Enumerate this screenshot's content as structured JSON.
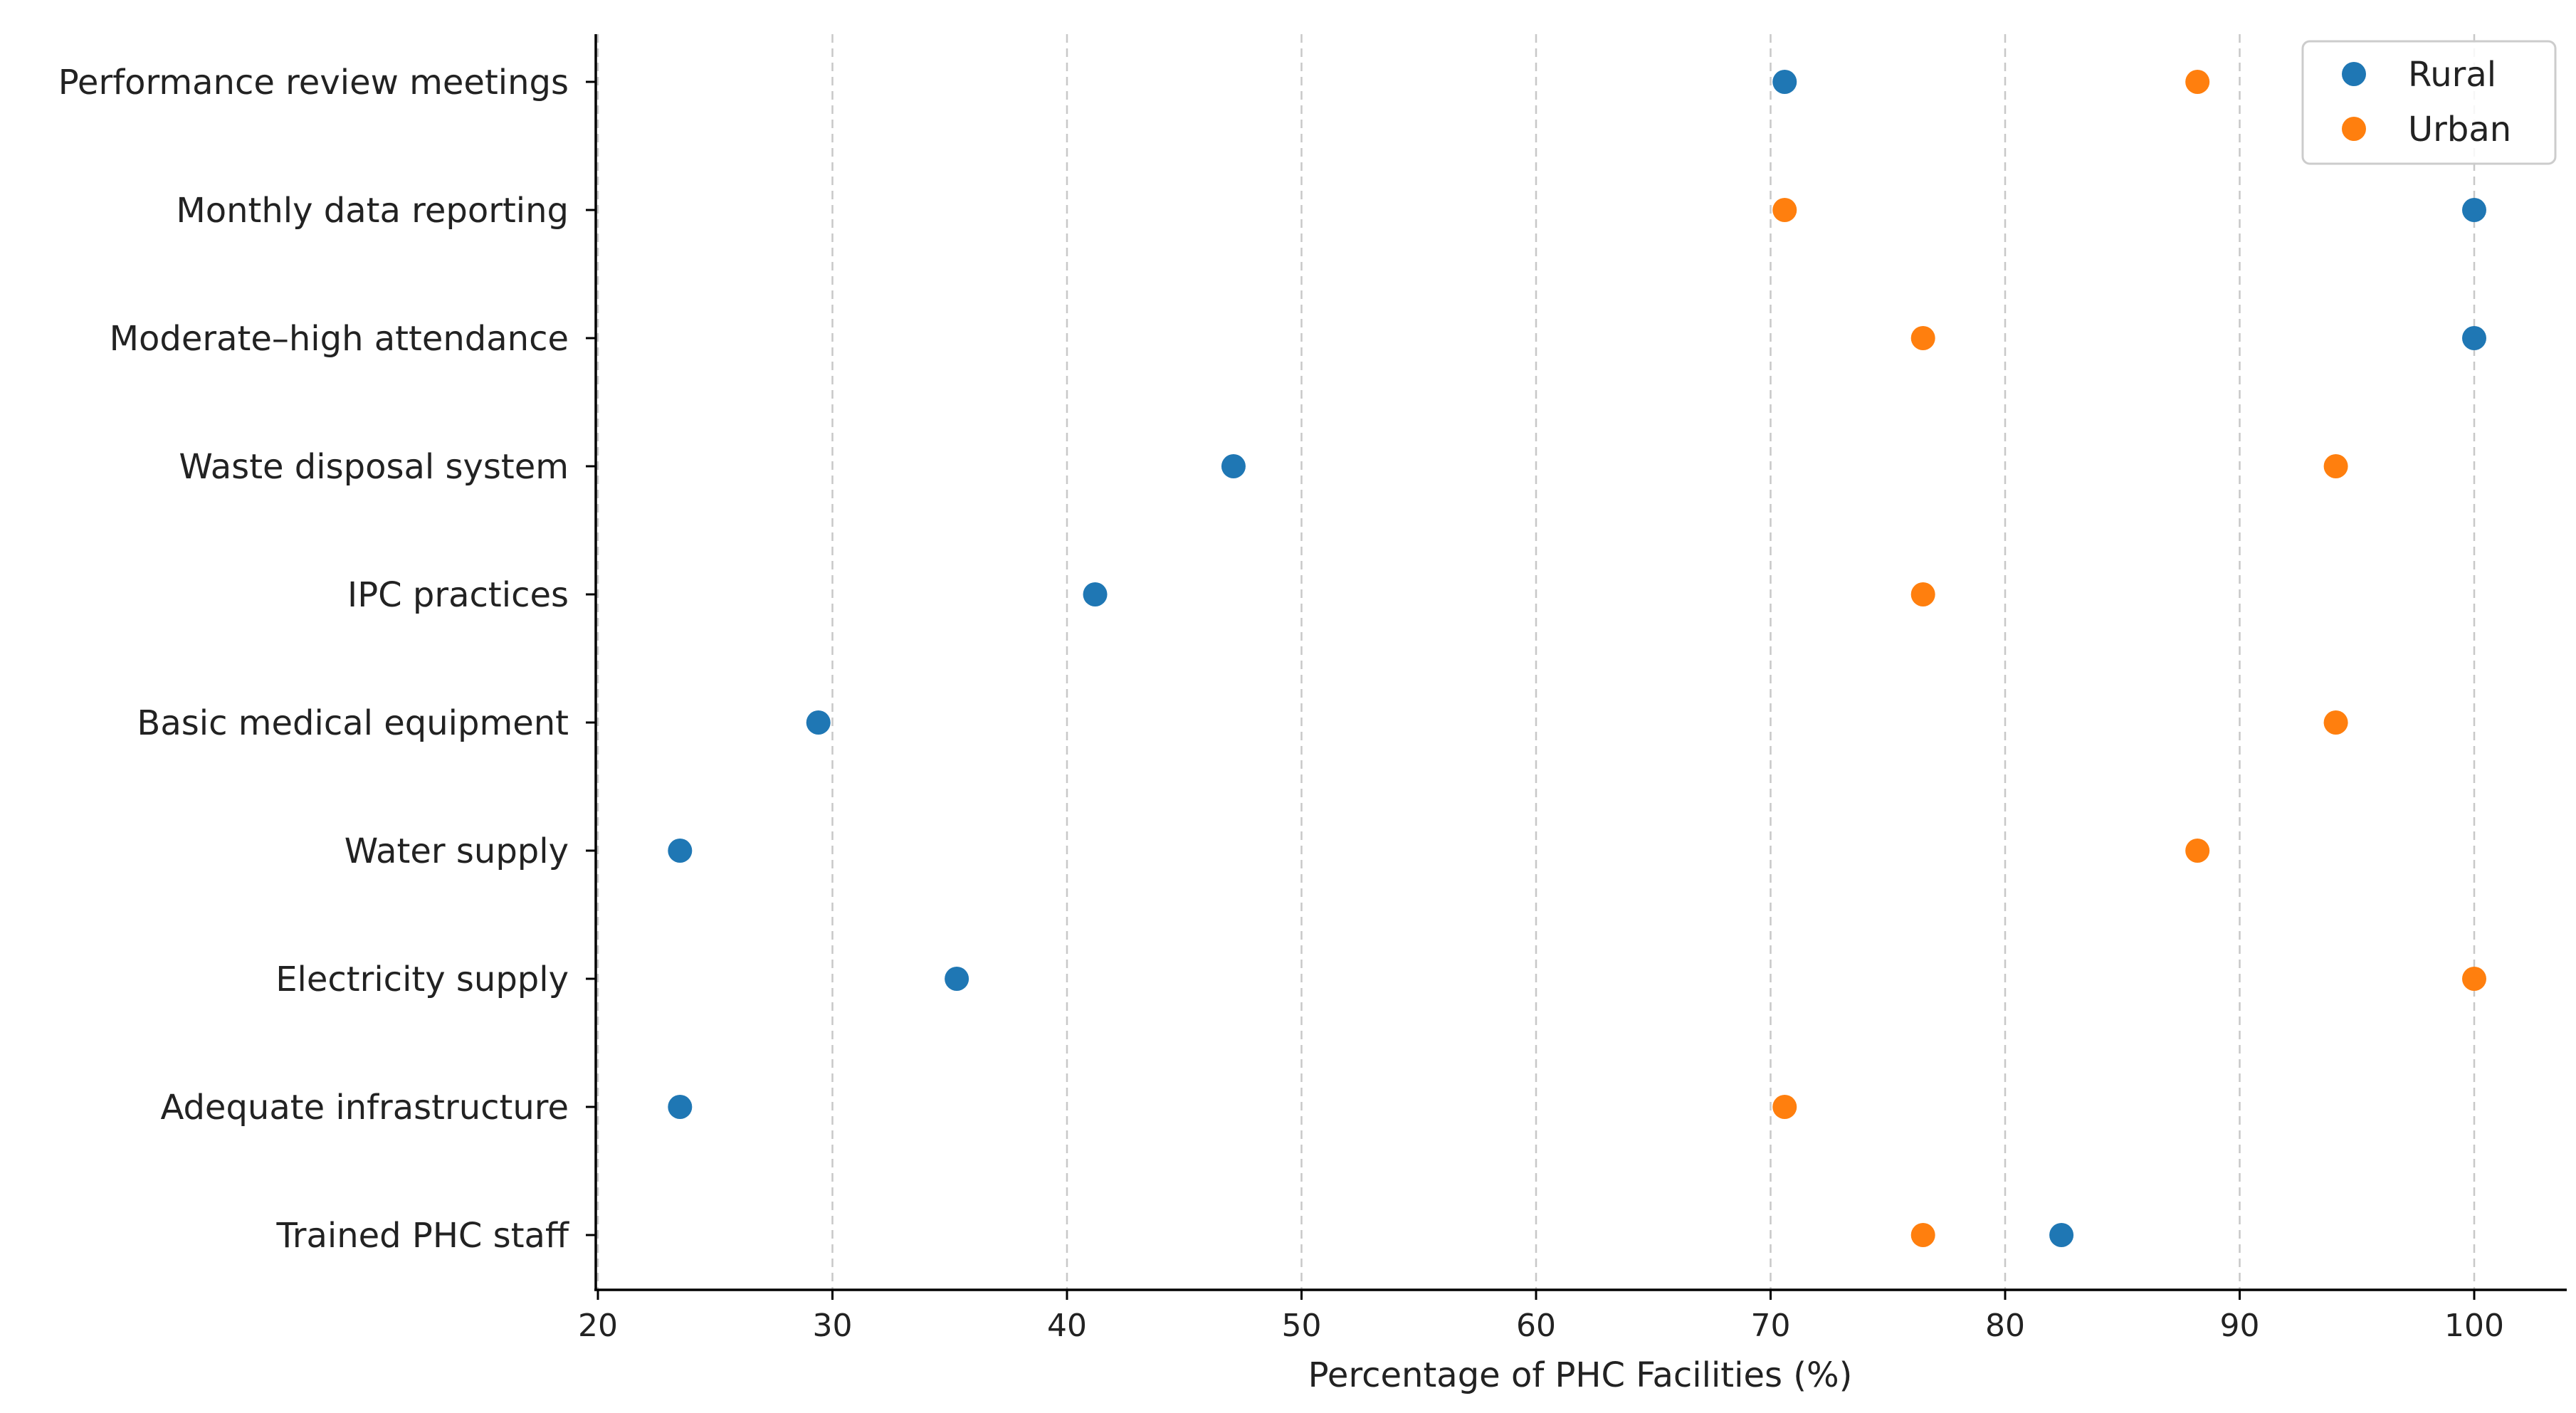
{
  "chart_data": {
    "type": "scatter",
    "title": "",
    "xlabel": "Percentage of PHC Facilities (%)",
    "ylabel": "",
    "xlim": [
      20,
      102.5
    ],
    "xticks": [
      20,
      30,
      40,
      50,
      60,
      70,
      80,
      90,
      100
    ],
    "grid": "vertical dashed",
    "legend_position": "top-right",
    "categories": [
      "Performance review meetings",
      "Monthly data reporting",
      "Moderate–high attendance",
      "Waste disposal system",
      "IPC practices",
      "Basic medical equipment",
      "Water supply",
      "Electricity supply",
      "Adequate infrastructure",
      "Trained PHC staff"
    ],
    "series": [
      {
        "name": "Rural",
        "color": "#1f77b4",
        "values": [
          70.6,
          100,
          100,
          47.1,
          41.2,
          29.4,
          23.5,
          35.3,
          23.5,
          82.4
        ]
      },
      {
        "name": "Urban",
        "color": "#ff7f0e",
        "values": [
          88.2,
          70.6,
          76.5,
          94.1,
          76.5,
          94.1,
          88.2,
          100,
          70.6,
          76.5
        ]
      }
    ]
  }
}
